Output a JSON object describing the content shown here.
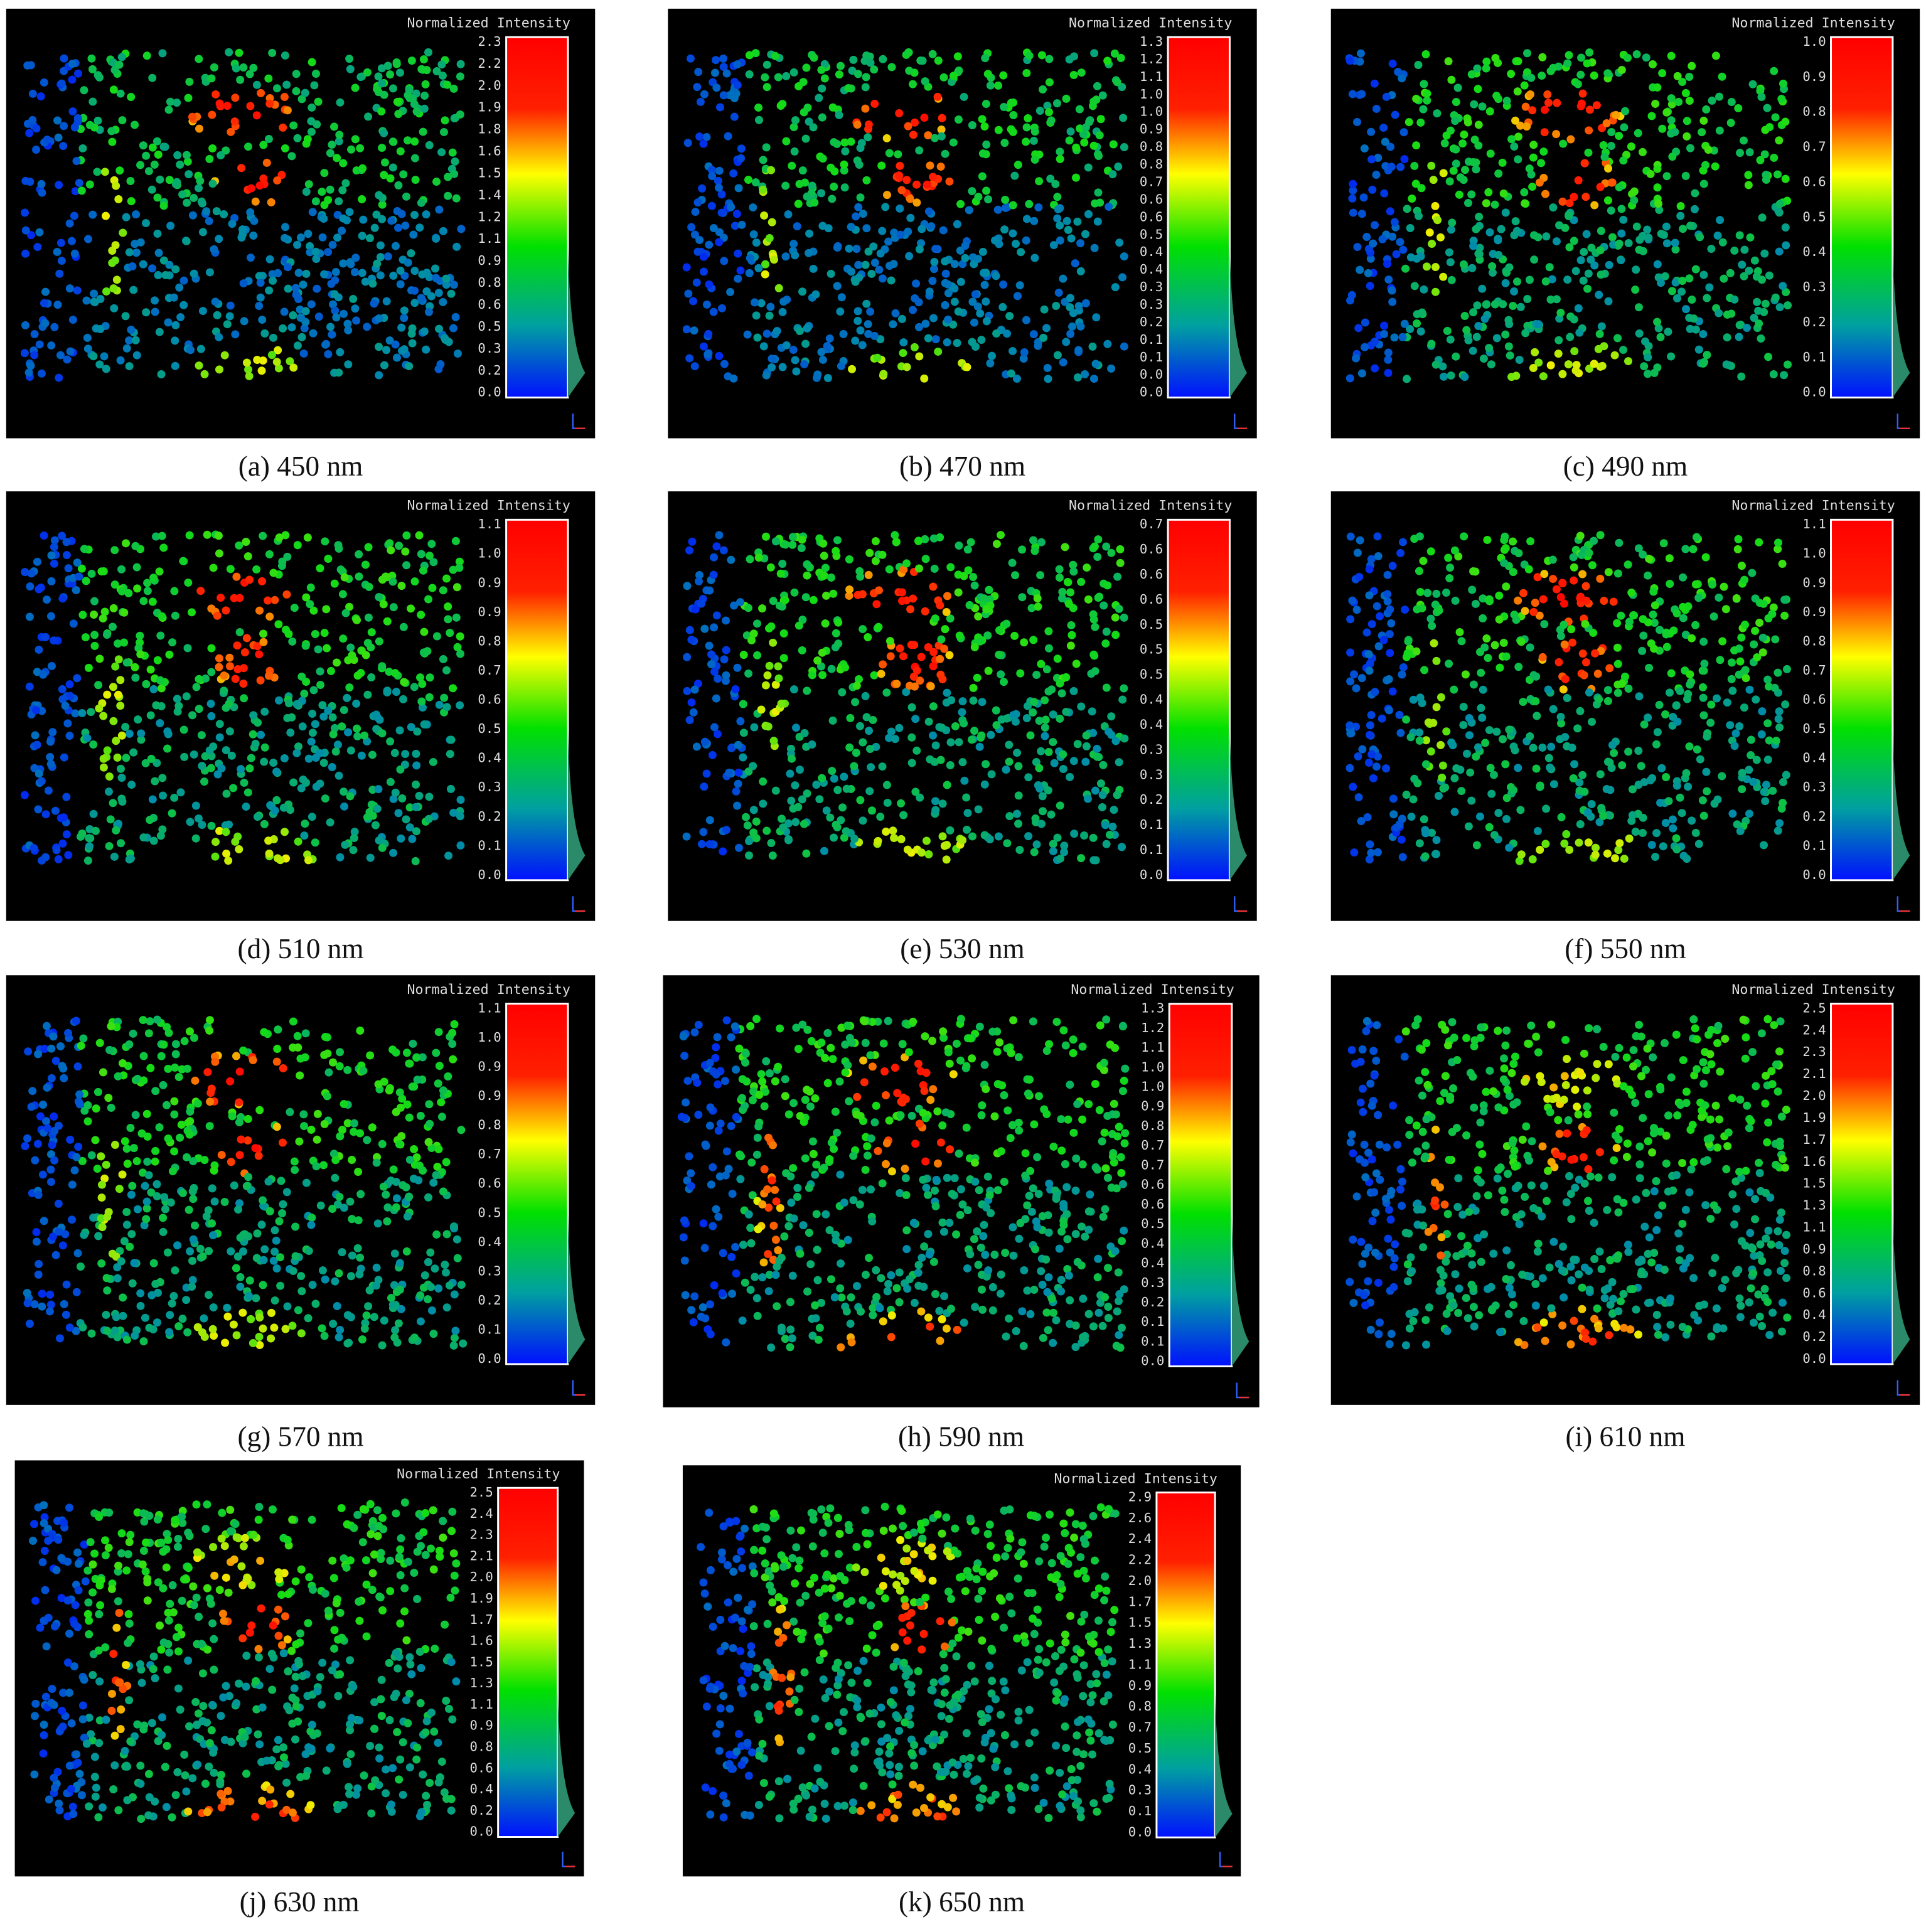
{
  "panels": [
    {
      "legend_title": "Normalized Intensity",
      "colorbar_labels": [
        "2.3",
        "2.2",
        "2.0",
        "1.9",
        "1.8",
        "1.6",
        "1.5",
        "1.4",
        "1.2",
        "1.1",
        "0.9",
        "0.8",
        "0.6",
        "0.5",
        "0.3",
        "0.2",
        "0.0"
      ],
      "caption": "(a) 450 nm"
    },
    {
      "legend_title": "Normalized Intensity",
      "colorbar_labels": [
        "1.3",
        "1.2",
        "1.1",
        "1.0",
        "1.0",
        "0.9",
        "0.8",
        "0.8",
        "0.7",
        "0.6",
        "0.6",
        "0.5",
        "0.4",
        "0.4",
        "0.3",
        "0.3",
        "0.2",
        "0.1",
        "0.1",
        "0.0",
        "0.0"
      ],
      "caption": "(b) 470 nm"
    },
    {
      "legend_title": "Normalized Intensity",
      "colorbar_labels": [
        "1.0",
        "0.9",
        "0.8",
        "0.7",
        "0.6",
        "0.5",
        "0.4",
        "0.3",
        "0.2",
        "0.1",
        "0.0"
      ],
      "caption": "(c) 490 nm"
    },
    {
      "legend_title": "Normalized Intensity",
      "colorbar_labels": [
        "1.1",
        "1.0",
        "0.9",
        "0.9",
        "0.8",
        "0.7",
        "0.6",
        "0.5",
        "0.4",
        "0.3",
        "0.2",
        "0.1",
        "0.0"
      ],
      "caption": "(d) 510 nm"
    },
    {
      "legend_title": "Normalized Intensity",
      "colorbar_labels": [
        "0.7",
        "0.6",
        "0.6",
        "0.6",
        "0.5",
        "0.5",
        "0.5",
        "0.4",
        "0.4",
        "0.3",
        "0.3",
        "0.2",
        "0.1",
        "0.1",
        "0.0"
      ],
      "caption": "(e) 530 nm"
    },
    {
      "legend_title": "Normalized Intensity",
      "colorbar_labels": [
        "1.1",
        "1.0",
        "0.9",
        "0.9",
        "0.8",
        "0.7",
        "0.6",
        "0.5",
        "0.4",
        "0.3",
        "0.2",
        "0.1",
        "0.0"
      ],
      "caption": "(f) 550 nm"
    },
    {
      "legend_title": "Normalized Intensity",
      "colorbar_labels": [
        "1.1",
        "1.0",
        "0.9",
        "0.9",
        "0.8",
        "0.7",
        "0.6",
        "0.5",
        "0.4",
        "0.3",
        "0.2",
        "0.1",
        "0.0"
      ],
      "caption": "(g) 570 nm"
    },
    {
      "legend_title": "Normalized Intensity",
      "colorbar_labels": [
        "1.3",
        "1.2",
        "1.1",
        "1.0",
        "1.0",
        "0.9",
        "0.8",
        "0.7",
        "0.7",
        "0.6",
        "0.6",
        "0.5",
        "0.4",
        "0.4",
        "0.3",
        "0.2",
        "0.1",
        "0.1",
        "0.0"
      ],
      "caption": "(h) 590 nm"
    },
    {
      "legend_title": "Normalized Intensity",
      "colorbar_labels": [
        "2.5",
        "2.4",
        "2.3",
        "2.1",
        "2.0",
        "1.9",
        "1.7",
        "1.6",
        "1.5",
        "1.3",
        "1.1",
        "0.9",
        "0.8",
        "0.6",
        "0.4",
        "0.2",
        "0.0"
      ],
      "caption": "(i) 610 nm"
    },
    {
      "legend_title": "Normalized Intensity",
      "colorbar_labels": [
        "2.5",
        "2.4",
        "2.3",
        "2.1",
        "2.0",
        "1.9",
        "1.7",
        "1.6",
        "1.5",
        "1.3",
        "1.1",
        "0.9",
        "0.8",
        "0.6",
        "0.4",
        "0.2",
        "0.0"
      ],
      "caption": "(j) 630 nm"
    },
    {
      "legend_title": "Normalized Intensity",
      "colorbar_labels": [
        "2.9",
        "2.6",
        "2.4",
        "2.2",
        "2.0",
        "1.7",
        "1.5",
        "1.3",
        "1.1",
        "0.9",
        "0.8",
        "0.7",
        "0.5",
        "0.4",
        "0.3",
        "0.1",
        "0.0"
      ],
      "caption": "(k) 650 nm"
    }
  ]
}
